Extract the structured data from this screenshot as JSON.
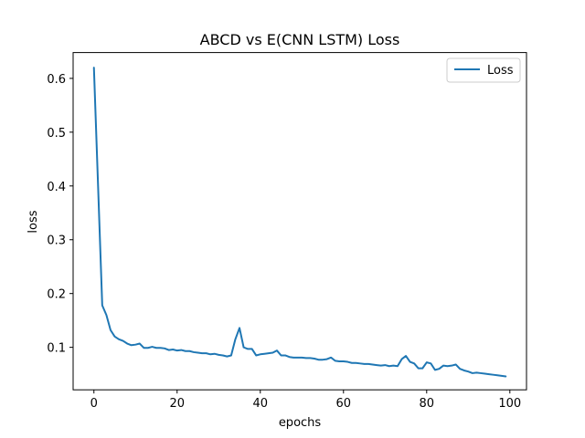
{
  "chart_data": {
    "type": "line",
    "title": "ABCD vs E(CNN LSTM) Loss",
    "xlabel": "epochs",
    "ylabel": "loss",
    "xlim": [
      -5,
      104
    ],
    "ylim": [
      0.021,
      0.648
    ],
    "x_ticks": [
      0,
      20,
      40,
      60,
      80,
      100
    ],
    "x_tick_labels": [
      "0",
      "20",
      "40",
      "60",
      "80",
      "100"
    ],
    "y_ticks": [
      0.1,
      0.2,
      0.3,
      0.4,
      0.5,
      0.6
    ],
    "y_tick_labels": [
      "0.1",
      "0.2",
      "0.3",
      "0.4",
      "0.5",
      "0.6"
    ],
    "grid": false,
    "legend_position": "top-right",
    "series": [
      {
        "name": "Loss",
        "color": "#1f77b4",
        "x": [
          0,
          1,
          2,
          3,
          4,
          5,
          6,
          7,
          8,
          9,
          10,
          11,
          12,
          13,
          14,
          15,
          16,
          17,
          18,
          19,
          20,
          21,
          22,
          23,
          24,
          25,
          26,
          27,
          28,
          29,
          30,
          31,
          32,
          33,
          34,
          35,
          36,
          37,
          38,
          39,
          40,
          41,
          42,
          43,
          44,
          45,
          46,
          47,
          48,
          49,
          50,
          51,
          52,
          53,
          54,
          55,
          56,
          57,
          58,
          59,
          60,
          61,
          62,
          63,
          64,
          65,
          66,
          67,
          68,
          69,
          70,
          71,
          72,
          73,
          74,
          75,
          76,
          77,
          78,
          79,
          80,
          81,
          82,
          83,
          84,
          85,
          86,
          87,
          88,
          89,
          90,
          91,
          92,
          93,
          94,
          95,
          96,
          97,
          98,
          99
        ],
        "values": [
          0.62,
          0.4,
          0.178,
          0.16,
          0.132,
          0.12,
          0.115,
          0.112,
          0.107,
          0.104,
          0.105,
          0.107,
          0.099,
          0.099,
          0.101,
          0.099,
          0.099,
          0.098,
          0.095,
          0.096,
          0.094,
          0.095,
          0.093,
          0.093,
          0.091,
          0.09,
          0.089,
          0.089,
          0.087,
          0.088,
          0.086,
          0.085,
          0.083,
          0.085,
          0.115,
          0.136,
          0.1,
          0.097,
          0.097,
          0.085,
          0.087,
          0.088,
          0.089,
          0.09,
          0.094,
          0.085,
          0.085,
          0.082,
          0.081,
          0.081,
          0.081,
          0.08,
          0.08,
          0.079,
          0.077,
          0.077,
          0.078,
          0.081,
          0.075,
          0.074,
          0.074,
          0.073,
          0.071,
          0.071,
          0.07,
          0.069,
          0.069,
          0.068,
          0.067,
          0.066,
          0.067,
          0.065,
          0.066,
          0.065,
          0.078,
          0.084,
          0.073,
          0.07,
          0.061,
          0.061,
          0.072,
          0.07,
          0.058,
          0.06,
          0.066,
          0.065,
          0.066,
          0.068,
          0.06,
          0.057,
          0.055,
          0.052,
          0.053,
          0.052,
          0.051,
          0.05,
          0.049,
          0.048,
          0.047,
          0.046
        ]
      }
    ]
  }
}
